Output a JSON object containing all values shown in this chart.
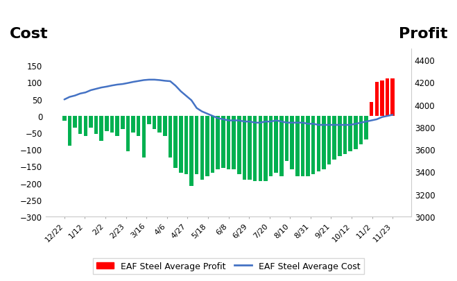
{
  "x_labels": [
    "12/22",
    "1/12",
    "2/2",
    "2/23",
    "3/16",
    "4/6",
    "4/27",
    "5/18",
    "6/8",
    "6/29",
    "7/20",
    "8/10",
    "8/31",
    "9/21",
    "10/12",
    "11/2",
    "11/23"
  ],
  "bar_heights": [
    -15,
    -90,
    -35,
    -55,
    -60,
    -35,
    -55,
    -75,
    -45,
    -50,
    -60,
    -40,
    -105,
    -50,
    -60,
    -125,
    -25,
    -40,
    -50,
    -60,
    -125,
    -155,
    -170,
    -175,
    -210,
    -175,
    -190,
    -180,
    -170,
    -160,
    -155,
    -160,
    -160,
    -175,
    -190,
    -190,
    -195,
    -195,
    -195,
    -180,
    -170,
    -180,
    -135,
    -160,
    -180,
    -180,
    -180,
    -175,
    -165,
    -160,
    -145,
    -130,
    -120,
    -115,
    -105,
    -100,
    -85,
    -70,
    40,
    100,
    105,
    110,
    110
  ],
  "cost_line": [
    4045,
    4068,
    4080,
    4098,
    4108,
    4128,
    4140,
    4152,
    4160,
    4170,
    4178,
    4183,
    4192,
    4202,
    4210,
    4218,
    4222,
    4222,
    4218,
    4212,
    4208,
    4168,
    4118,
    4078,
    4038,
    3968,
    3938,
    3918,
    3898,
    3878,
    3868,
    3858,
    3858,
    3858,
    3848,
    3848,
    3838,
    3838,
    3848,
    3848,
    3858,
    3848,
    3838,
    3838,
    3838,
    3838,
    3828,
    3828,
    3818,
    3818,
    3818,
    3818,
    3818,
    3818,
    3818,
    3828,
    3838,
    3848,
    3858,
    3868,
    3888,
    3898,
    3908
  ],
  "bar_color_green": "#00b050",
  "bar_color_red": "#ff0000",
  "line_color": "#4472c4",
  "left_ylim": [
    -300,
    200
  ],
  "right_ylim": [
    3000,
    4500
  ],
  "left_yticks": [
    -300,
    -250,
    -200,
    -150,
    -100,
    -50,
    0,
    50,
    100,
    150
  ],
  "right_yticks": [
    3000,
    3200,
    3400,
    3600,
    3800,
    4000,
    4200,
    4400
  ],
  "title_left": "Cost",
  "title_right": "Profit",
  "legend_profit": "EAF Steel Average Profit",
  "legend_cost": "EAF Steel Average Cost",
  "background_color": "#ffffff"
}
